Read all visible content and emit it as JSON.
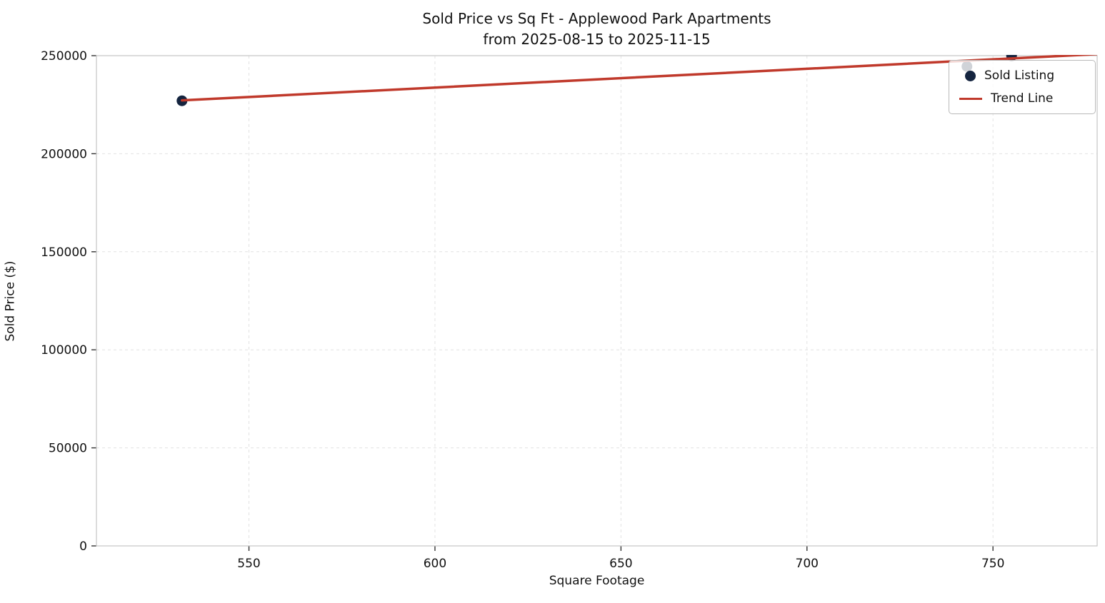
{
  "chart_data": {
    "type": "scatter",
    "title": "Sold Price vs Sq Ft - Applewood Park Apartments",
    "subtitle": "from 2025-08-15 to 2025-11-15",
    "xlabel": "Square Footage",
    "ylabel": "Sold Price ($)",
    "xlim": [
      509,
      778
    ],
    "ylim": [
      0,
      250000
    ],
    "xticks": [
      550,
      600,
      650,
      700,
      750
    ],
    "yticks": [
      0,
      50000,
      100000,
      150000,
      200000,
      250000
    ],
    "grid": true,
    "legend_position": "upper right",
    "series": [
      {
        "name": "Sold Listing",
        "type": "scatter",
        "color": "#14243f",
        "points": [
          [
            532,
            227000
          ],
          [
            743,
            244500
          ],
          [
            755,
            249900
          ]
        ]
      },
      {
        "name": "Trend Line",
        "type": "line",
        "color": "#c0392b",
        "points": [
          [
            532,
            227200
          ],
          [
            778,
            250800
          ]
        ]
      }
    ]
  }
}
